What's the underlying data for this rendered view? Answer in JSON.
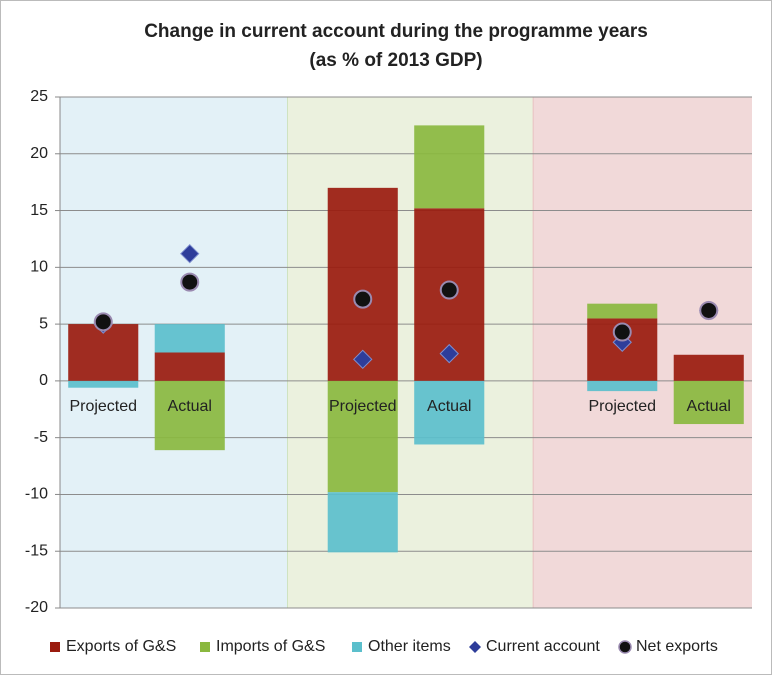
{
  "chart_data": {
    "type": "bar",
    "stacked": true,
    "title": "Change in current account during the programme years",
    "subtitle": "(as % of 2013 GDP)",
    "categories": [
      "Projected",
      "Actual",
      null,
      "Projected",
      "Actual",
      null,
      "Projected",
      "Actual"
    ],
    "series": [
      {
        "name": "Exports of G&S",
        "type": "bar",
        "color": "#9a1b0e",
        "values": [
          5.0,
          2.5,
          null,
          17.0,
          15.2,
          null,
          5.5,
          2.3
        ]
      },
      {
        "name": "Imports of G&S",
        "type": "bar",
        "color": "#8ab83f",
        "values": [
          0,
          -6.1,
          null,
          -9.8,
          7.3,
          null,
          1.3,
          -3.8
        ]
      },
      {
        "name": "Other items",
        "type": "bar",
        "color": "#5bbfcc",
        "values": [
          -0.6,
          2.5,
          null,
          -5.3,
          -5.6,
          null,
          -0.9,
          0
        ]
      },
      {
        "name": "Current account",
        "type": "diamond",
        "color": "#2e3d9a",
        "values": [
          5.0,
          11.2,
          null,
          1.9,
          2.4,
          null,
          3.4,
          6.2
        ]
      },
      {
        "name": "Net exports",
        "type": "circle",
        "color": "#111111",
        "values": [
          5.2,
          8.7,
          null,
          7.2,
          8.0,
          null,
          4.3,
          6.2
        ]
      }
    ],
    "ylim": [
      -20,
      25
    ],
    "yticks": [
      -20,
      -15,
      -10,
      -5,
      0,
      5,
      10,
      15,
      20,
      25
    ],
    "grid": true,
    "legend": "bottom"
  }
}
